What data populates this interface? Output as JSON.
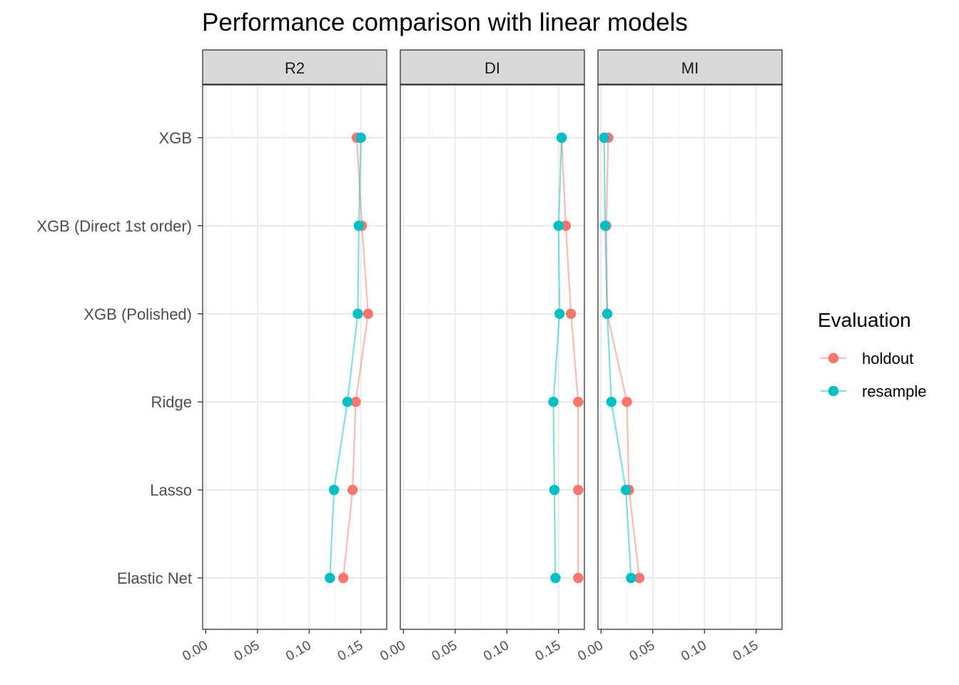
{
  "chart_data": {
    "type": "scatter",
    "title": "Performance comparison with linear models",
    "xlabel": "",
    "ylabel": "",
    "categories": [
      "XGB",
      "XGB (Direct 1st order)",
      "XGB (Polished)",
      "Ridge",
      "Lasso",
      "Elastic Net"
    ],
    "panels": [
      "R2",
      "DI",
      "MI"
    ],
    "xlim": [
      -0.003,
      0.175
    ],
    "x_ticks": [
      0.0,
      0.05,
      0.1,
      0.15
    ],
    "x_tick_labels": [
      "0.00",
      "0.05",
      "0.10",
      "0.15"
    ],
    "grid": true,
    "legend": {
      "title": "Evaluation",
      "placement": "right",
      "entries": [
        "holdout",
        "resample"
      ]
    },
    "colors": {
      "holdout": "#F8766D",
      "resample": "#00BFC4"
    },
    "series": [
      {
        "name": "holdout",
        "panels": {
          "R2": [
            0.146,
            0.151,
            0.157,
            0.145,
            0.142,
            0.133
          ],
          "DI": [
            0.153,
            0.157,
            0.162,
            0.169,
            0.169,
            0.169
          ],
          "MI": [
            0.007,
            0.005,
            0.006,
            0.025,
            0.027,
            0.037
          ]
        }
      },
      {
        "name": "resample",
        "panels": {
          "R2": [
            0.15,
            0.148,
            0.147,
            0.137,
            0.124,
            0.12
          ],
          "DI": [
            0.153,
            0.15,
            0.151,
            0.145,
            0.146,
            0.147
          ],
          "MI": [
            0.003,
            0.004,
            0.006,
            0.01,
            0.024,
            0.029
          ]
        }
      }
    ]
  }
}
